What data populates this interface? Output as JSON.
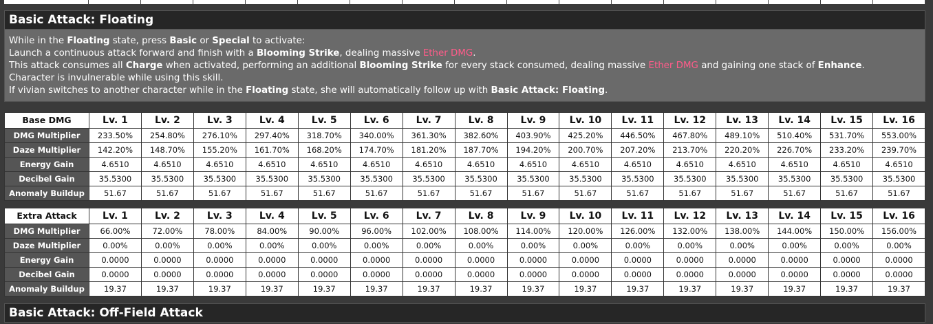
{
  "sections": {
    "floating_title": "Basic Attack: Floating",
    "offfield_title": "Basic Attack: Off-Field Attack"
  },
  "description": {
    "line1": {
      "a": "While in the ",
      "b": "Floating",
      "c": " state, press ",
      "d": "Basic",
      "e": " or ",
      "f": "Special",
      "g": " to activate:"
    },
    "line2": {
      "a": "Launch a continuous attack forward and finish with a ",
      "b": "Blooming Strike",
      "c": ", dealing massive ",
      "d": "Ether DMG",
      "e": "."
    },
    "line3": {
      "a": "This attack consumes all ",
      "b": "Charge",
      "c": " when activated, performing an additional ",
      "d": "Blooming Strike",
      "e": " for every stack consumed, dealing massive ",
      "f": "Ether DMG",
      "g": " and gaining one stack of ",
      "h": "Enhance",
      "i": "."
    },
    "line4": "Character is invulnerable while using this skill.",
    "line5": {
      "a": "If vivian switches to another character while in the ",
      "b": "Floating",
      "c": " state, she will automatically follow up with ",
      "d": "Basic Attack: Floating",
      "e": "."
    }
  },
  "colors": {
    "ether": "#ff5c8a"
  },
  "levels": [
    "Lv. 1",
    "Lv. 2",
    "Lv. 3",
    "Lv. 4",
    "Lv. 5",
    "Lv. 6",
    "Lv. 7",
    "Lv. 8",
    "Lv. 9",
    "Lv. 10",
    "Lv. 11",
    "Lv. 12",
    "Lv. 13",
    "Lv. 14",
    "Lv. 15",
    "Lv. 16"
  ],
  "tables": [
    {
      "title": "Base DMG",
      "rows": [
        {
          "label": "DMG Multiplier",
          "values": [
            "233.50%",
            "254.80%",
            "276.10%",
            "297.40%",
            "318.70%",
            "340.00%",
            "361.30%",
            "382.60%",
            "403.90%",
            "425.20%",
            "446.50%",
            "467.80%",
            "489.10%",
            "510.40%",
            "531.70%",
            "553.00%"
          ]
        },
        {
          "label": "Daze Multiplier",
          "values": [
            "142.20%",
            "148.70%",
            "155.20%",
            "161.70%",
            "168.20%",
            "174.70%",
            "181.20%",
            "187.70%",
            "194.20%",
            "200.70%",
            "207.20%",
            "213.70%",
            "220.20%",
            "226.70%",
            "233.20%",
            "239.70%"
          ]
        },
        {
          "label": "Energy Gain",
          "values": [
            "4.6510",
            "4.6510",
            "4.6510",
            "4.6510",
            "4.6510",
            "4.6510",
            "4.6510",
            "4.6510",
            "4.6510",
            "4.6510",
            "4.6510",
            "4.6510",
            "4.6510",
            "4.6510",
            "4.6510",
            "4.6510"
          ]
        },
        {
          "label": "Decibel Gain",
          "values": [
            "35.5300",
            "35.5300",
            "35.5300",
            "35.5300",
            "35.5300",
            "35.5300",
            "35.5300",
            "35.5300",
            "35.5300",
            "35.5300",
            "35.5300",
            "35.5300",
            "35.5300",
            "35.5300",
            "35.5300",
            "35.5300"
          ]
        },
        {
          "label": "Anomaly Buildup",
          "values": [
            "51.67",
            "51.67",
            "51.67",
            "51.67",
            "51.67",
            "51.67",
            "51.67",
            "51.67",
            "51.67",
            "51.67",
            "51.67",
            "51.67",
            "51.67",
            "51.67",
            "51.67",
            "51.67"
          ]
        }
      ]
    },
    {
      "title": "Extra Attack",
      "rows": [
        {
          "label": "DMG Multiplier",
          "values": [
            "66.00%",
            "72.00%",
            "78.00%",
            "84.00%",
            "90.00%",
            "96.00%",
            "102.00%",
            "108.00%",
            "114.00%",
            "120.00%",
            "126.00%",
            "132.00%",
            "138.00%",
            "144.00%",
            "150.00%",
            "156.00%"
          ]
        },
        {
          "label": "Daze Multiplier",
          "values": [
            "0.00%",
            "0.00%",
            "0.00%",
            "0.00%",
            "0.00%",
            "0.00%",
            "0.00%",
            "0.00%",
            "0.00%",
            "0.00%",
            "0.00%",
            "0.00%",
            "0.00%",
            "0.00%",
            "0.00%",
            "0.00%"
          ]
        },
        {
          "label": "Energy Gain",
          "values": [
            "0.0000",
            "0.0000",
            "0.0000",
            "0.0000",
            "0.0000",
            "0.0000",
            "0.0000",
            "0.0000",
            "0.0000",
            "0.0000",
            "0.0000",
            "0.0000",
            "0.0000",
            "0.0000",
            "0.0000",
            "0.0000"
          ]
        },
        {
          "label": "Decibel Gain",
          "values": [
            "0.0000",
            "0.0000",
            "0.0000",
            "0.0000",
            "0.0000",
            "0.0000",
            "0.0000",
            "0.0000",
            "0.0000",
            "0.0000",
            "0.0000",
            "0.0000",
            "0.0000",
            "0.0000",
            "0.0000",
            "0.0000"
          ]
        },
        {
          "label": "Anomaly Buildup",
          "values": [
            "19.37",
            "19.37",
            "19.37",
            "19.37",
            "19.37",
            "19.37",
            "19.37",
            "19.37",
            "19.37",
            "19.37",
            "19.37",
            "19.37",
            "19.37",
            "19.37",
            "19.37",
            "19.37"
          ]
        }
      ]
    }
  ]
}
